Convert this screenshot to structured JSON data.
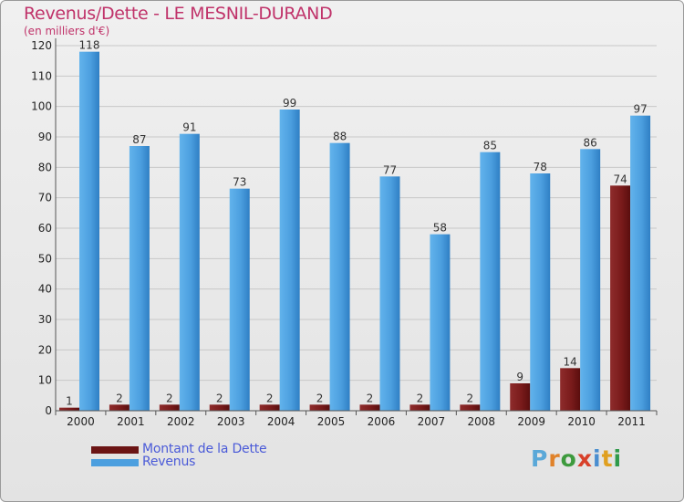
{
  "title": "Revenus/Dette - LE MESNIL-DURAND",
  "subtitle": "(en milliers d'€)",
  "legend": {
    "dette": "Montant de la Dette",
    "revenus": "Revenus"
  },
  "logo": {
    "letters": [
      "P",
      "r",
      "o",
      "x",
      "i",
      "t",
      "i"
    ],
    "colors": [
      "#5aa8d8",
      "#e0822a",
      "#3d9a3d",
      "#d8402a",
      "#4a8ed0",
      "#e0a020",
      "#2f9a4a"
    ]
  },
  "colors": {
    "dette": "#7a1b1b",
    "revenus": "#4c9fdf",
    "title": "#c0336a"
  },
  "chart_data": {
    "type": "bar",
    "title": "Revenus/Dette - LE MESNIL-DURAND",
    "ylabel": "(en milliers d'€)",
    "ylim": [
      0,
      120
    ],
    "yticks": [
      0,
      10,
      20,
      30,
      40,
      50,
      60,
      70,
      80,
      90,
      100,
      110,
      120
    ],
    "categories": [
      "2000",
      "2001",
      "2002",
      "2003",
      "2004",
      "2005",
      "2006",
      "2007",
      "2008",
      "2009",
      "2010",
      "2011"
    ],
    "series": [
      {
        "name": "Montant de la Dette",
        "values": [
          1,
          2,
          2,
          2,
          2,
          2,
          2,
          2,
          2,
          9,
          14,
          74
        ]
      },
      {
        "name": "Revenus",
        "values": [
          118,
          87,
          91,
          73,
          99,
          88,
          77,
          58,
          85,
          78,
          86,
          97
        ]
      }
    ],
    "grid": true,
    "legend": "bottom-left"
  }
}
